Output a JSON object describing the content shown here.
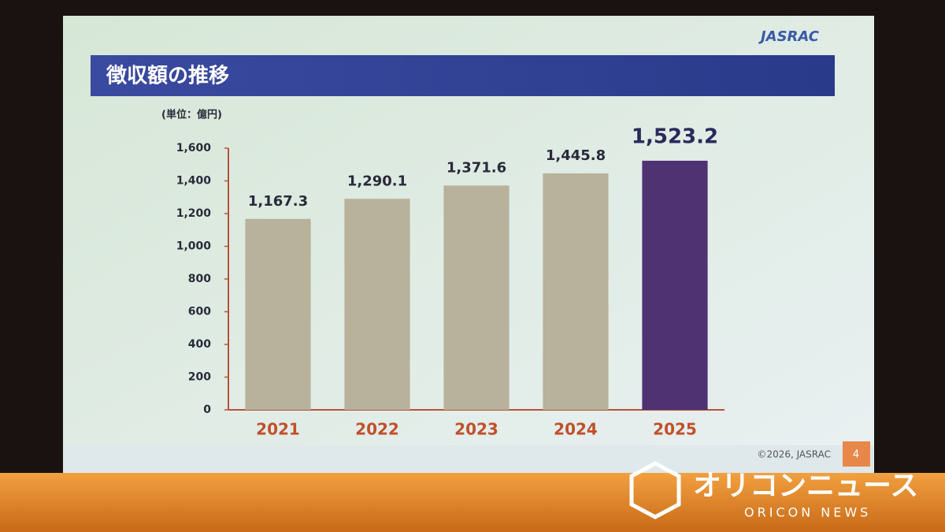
{
  "chart_data": {
    "type": "bar",
    "title": "徴収額の推移",
    "unit_label": "(単位：億円)",
    "categories": [
      "2021",
      "2022",
      "2023",
      "2024",
      "2025"
    ],
    "values": [
      1167.3,
      1290.1,
      1371.6,
      1445.8,
      1523.2
    ],
    "value_labels": [
      "1,167.3",
      "1,290.1",
      "1,371.6",
      "1,445.8",
      "1,523.2"
    ],
    "colors": [
      "#b8b19b",
      "#b8b19b",
      "#b8b19b",
      "#b8b19b",
      "#4e3272"
    ],
    "ylim": [
      0,
      1600
    ],
    "yticks": [
      0,
      200,
      400,
      600,
      800,
      {
        "value": 1000,
        "label": "1,000"
      },
      {
        "value": 1200,
        "label": "1,200"
      },
      {
        "value": 1400,
        "label": "1,400"
      },
      {
        "value": 1600,
        "label": "1,600"
      }
    ],
    "grid": false
  },
  "logo": "JASRAC",
  "footer": "©2026, JASRAC",
  "page_number": "4",
  "watermark": {
    "title": "オリコンニュース",
    "subtitle": "ORICON NEWS"
  }
}
